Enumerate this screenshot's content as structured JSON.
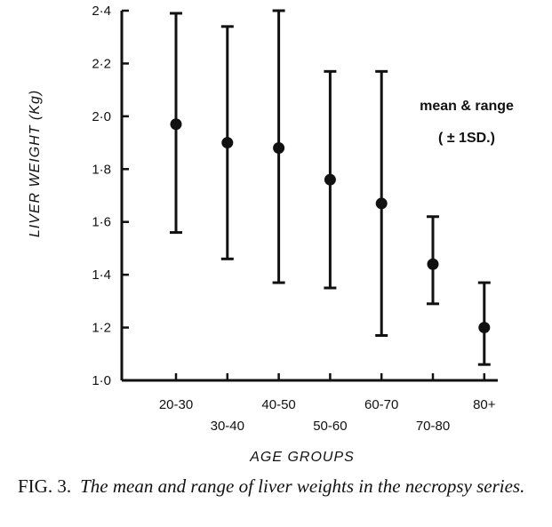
{
  "chart_data": {
    "type": "scatter",
    "title": "",
    "xlabel": "AGE GROUPS",
    "ylabel": "LIVER WEIGHT (Kg)",
    "ylim": [
      1.0,
      2.4
    ],
    "yticks": [
      "1·0",
      "1·2",
      "1·4",
      "1·6",
      "1·8",
      "2·0",
      "2·2",
      "2·4"
    ],
    "categories": [
      "20-30",
      "30-40",
      "40-50",
      "50-60",
      "60-70",
      "70-80",
      "80+"
    ],
    "series": [
      {
        "values": [
          1.97,
          1.9,
          1.88,
          1.76,
          1.67,
          1.44,
          1.2
        ],
        "lower": [
          1.56,
          1.46,
          1.37,
          1.35,
          1.17,
          1.29,
          1.06
        ],
        "upper": [
          2.39,
          2.34,
          2.4,
          2.17,
          2.17,
          1.62,
          1.37
        ]
      }
    ],
    "legend": {
      "line1": "mean & range",
      "line2": "( ± 1SD.)",
      "placement": "top-right"
    },
    "grid": false
  },
  "caption": {
    "label": "FIG. 3.",
    "text": "The mean and range of liver weights in the necropsy series."
  }
}
